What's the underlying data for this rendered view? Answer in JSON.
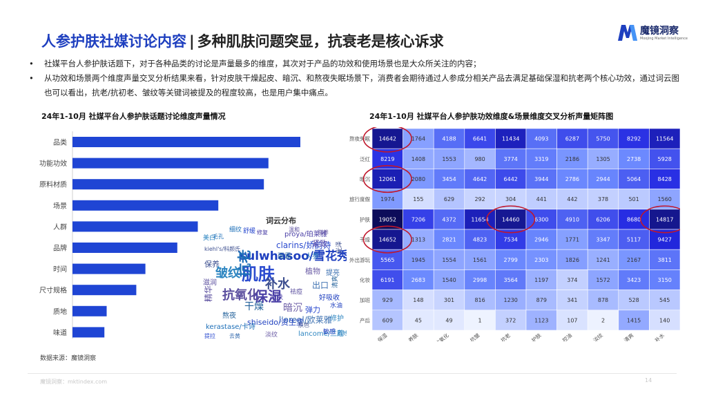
{
  "header": {
    "title_main": "人参护肤社媒讨论内容",
    "title_sep": "|",
    "title_sub": "多种肌肤问题突显，抗衰老是核心诉求",
    "logo_name": "魔镜洞察",
    "logo_sub": "Moojing Market Intelligence"
  },
  "bullets": [
    "社媒平台人参护肤话题下，对于各种品类的讨论是声量最多的维度，其次对于产品的功效和使用场景也是大众所关注的内容；",
    "从功效和场景两个维度声量交叉分析结果来看，针对皮肤干燥起皮、暗沉、和熬夜失眠场景下，消费者会期待通过人参成分相关产品去满足基础保湿和抗老两个核心功效，通过词云图也可以看出，抗老/抗初老、皱纹等关键词被提及的程度较高，也是用户集中痛点。"
  ],
  "colors": {
    "accent": "#1e3fbf",
    "bar": "#1f45d4",
    "highlight": "#c0182c"
  },
  "wordcloud": {
    "title": "词云分布",
    "words": [
      "sulwhasoo/雪花秀",
      "肌肤",
      "补水",
      "抗老",
      "保湿",
      "皱纹",
      "抗氧化",
      "干燥",
      "暗沉",
      "l'oreal/欧莱雅",
      "shiseido/资生堂",
      "clarins/娇韵诗",
      "kiehl's/科颜氏",
      "kerastase/卡诗",
      "proya/珀莱雅",
      "lancome/兰蔻",
      "精华",
      "面霜",
      "植物",
      "出口",
      "好吸收",
      "弹力",
      "保养",
      "人参",
      "紧致",
      "修护",
      "滋润",
      "熬夜",
      "淡纹",
      "提亮",
      "敏感",
      "提拉",
      "光泽",
      "细纹",
      "修复",
      "美白",
      "祛痘",
      "清爽",
      "滋养",
      "去黄",
      "水油",
      "舒缓",
      "肤色",
      "毛孔",
      "嫩肤",
      "质地",
      "温和"
    ]
  },
  "footer": {
    "source": "数据来源：魔镜洞察",
    "site": "魔镜洞察：mktindex.com",
    "page": "14"
  },
  "chart_data": [
    {
      "type": "bar",
      "orientation": "horizontal",
      "title": "24年1-10月 社媒平台人参护肤话题讨论维度声量情况",
      "categories": [
        "品类",
        "功能功效",
        "原料材质",
        "场景",
        "人群",
        "品牌",
        "时间",
        "尺寸规格",
        "质地",
        "味道"
      ],
      "values": [
        100,
        86,
        84,
        64,
        55,
        46,
        32,
        28,
        15,
        14
      ],
      "xlabel": "",
      "ylabel": "",
      "ylim": [
        0,
        100
      ],
      "grid": false
    },
    {
      "type": "heatmap",
      "title": "24年1-10月 社媒平台人参护肤功效维度&场景维度交叉分析声量矩阵图",
      "rows": [
        "熬夜失眠",
        "泛红",
        "暗沉",
        "旅行度假",
        "护肤",
        "干燥",
        "外出游玩",
        "化妆",
        "加班",
        "产后"
      ],
      "columns": [
        "保湿",
        "养肤",
        "抗氧化",
        "抗皱",
        "抗老",
        "护肤",
        "控油",
        "淡纹",
        "清爽",
        "补水"
      ],
      "values": [
        [
          14642,
          1764,
          4188,
          6641,
          11434,
          4093,
          6287,
          5750,
          8292,
          11564
        ],
        [
          8219,
          1408,
          1553,
          980,
          3774,
          3319,
          2186,
          1305,
          2738,
          5928
        ],
        [
          12061,
          2080,
          3454,
          4642,
          6442,
          3944,
          2786,
          2944,
          5064,
          8428
        ],
        [
          1974,
          155,
          629,
          292,
          304,
          441,
          442,
          378,
          501,
          1560
        ],
        [
          19052,
          7206,
          4372,
          11654,
          14460,
          6300,
          4910,
          6206,
          8680,
          14817
        ],
        [
          14652,
          1313,
          2821,
          4823,
          7534,
          2946,
          1771,
          3347,
          5117,
          9427
        ],
        [
          5565,
          1945,
          1554,
          1561,
          2799,
          2303,
          1826,
          1241,
          2167,
          3811
        ],
        [
          6191,
          2683,
          1540,
          2998,
          3564,
          1197,
          374,
          1572,
          3423,
          3150
        ],
        [
          929,
          148,
          301,
          816,
          1230,
          879,
          341,
          878,
          528,
          545
        ],
        [
          609,
          45,
          49,
          1,
          372,
          1123,
          107,
          2,
          1415,
          140
        ]
      ],
      "highlighted": [
        [
          0,
          0
        ],
        [
          2,
          0
        ],
        [
          4,
          4
        ],
        [
          4,
          9
        ],
        [
          5,
          0
        ]
      ]
    }
  ]
}
